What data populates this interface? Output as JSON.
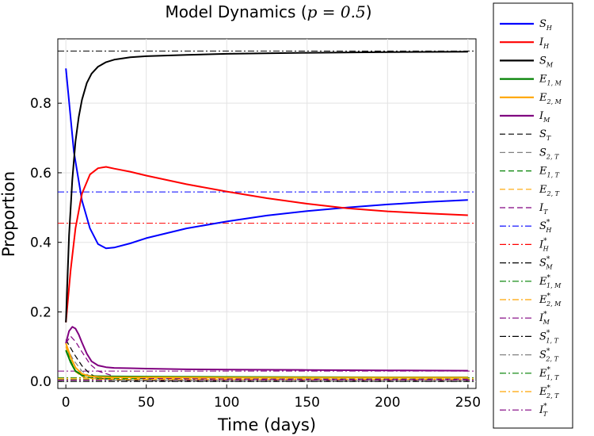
{
  "chart_data": {
    "type": "line",
    "title": "Model Dynamics (p = 0.5)",
    "title_parts": {
      "text": "Model Dynamics (",
      "math": "p = 0.5",
      "close": ")"
    },
    "xlabel": "Time (days)",
    "ylabel": "Proportion",
    "xlim": [
      -5,
      255
    ],
    "ylim": [
      -0.02,
      0.985
    ],
    "xticks": [
      0,
      50,
      100,
      150,
      200,
      250
    ],
    "yticks": [
      0.0,
      0.2,
      0.4,
      0.6,
      0.8
    ],
    "xtick_labels": [
      "0",
      "50",
      "100",
      "150",
      "200",
      "250"
    ],
    "ytick_labels": [
      "0.0",
      "0.2",
      "0.4",
      "0.6",
      "0.8"
    ],
    "grid": true,
    "legend_position": "outside-right",
    "series": [
      {
        "name": "S_H",
        "base": "S",
        "sub": "H",
        "sup": "",
        "color": "#0000ff",
        "style": "solid",
        "width": 2,
        "x": [
          0,
          5,
          10,
          15,
          20,
          25,
          30,
          40,
          50,
          75,
          100,
          125,
          150,
          175,
          200,
          225,
          250
        ],
        "y": [
          0.9,
          0.66,
          0.52,
          0.44,
          0.395,
          0.383,
          0.385,
          0.397,
          0.412,
          0.44,
          0.46,
          0.477,
          0.49,
          0.5,
          0.509,
          0.516,
          0.522
        ]
      },
      {
        "name": "I_H",
        "base": "I",
        "sub": "H",
        "sup": "",
        "color": "#ff0000",
        "style": "solid",
        "width": 2,
        "x": [
          0,
          3,
          6,
          10,
          15,
          20,
          25,
          30,
          40,
          50,
          75,
          100,
          125,
          150,
          175,
          200,
          225,
          250
        ],
        "y": [
          0.17,
          0.32,
          0.44,
          0.54,
          0.595,
          0.613,
          0.617,
          0.612,
          0.603,
          0.592,
          0.567,
          0.546,
          0.527,
          0.511,
          0.498,
          0.489,
          0.483,
          0.478
        ]
      },
      {
        "name": "S_M",
        "base": "S",
        "sub": "M",
        "sup": "",
        "color": "#000000",
        "style": "solid",
        "width": 2,
        "x": [
          0,
          2,
          4,
          6,
          8,
          10,
          13,
          16,
          20,
          25,
          30,
          40,
          50,
          75,
          100,
          150,
          200,
          250
        ],
        "y": [
          0.17,
          0.42,
          0.58,
          0.69,
          0.76,
          0.81,
          0.858,
          0.885,
          0.905,
          0.918,
          0.925,
          0.932,
          0.935,
          0.939,
          0.942,
          0.945,
          0.947,
          0.948
        ]
      },
      {
        "name": "E_1,M",
        "base": "E",
        "sub": "1, M",
        "sup": "",
        "color": "#008000",
        "style": "solid",
        "width": 2,
        "x": [
          0,
          3,
          6,
          10,
          15,
          20,
          30,
          50,
          100,
          150,
          200,
          250
        ],
        "y": [
          0.09,
          0.055,
          0.03,
          0.019,
          0.016,
          0.015,
          0.0145,
          0.014,
          0.013,
          0.0125,
          0.012,
          0.012
        ]
      },
      {
        "name": "E_2,M",
        "base": "E",
        "sub": "2, M",
        "sup": "",
        "color": "#ffa500",
        "style": "solid",
        "width": 2,
        "x": [
          0,
          3,
          6,
          10,
          15,
          20,
          30,
          50,
          100,
          150,
          200,
          250
        ],
        "y": [
          0.11,
          0.07,
          0.04,
          0.022,
          0.015,
          0.013,
          0.012,
          0.012,
          0.011,
          0.011,
          0.011,
          0.011
        ]
      },
      {
        "name": "I_M",
        "base": "I",
        "sub": "M",
        "sup": "",
        "color": "#800080",
        "style": "solid",
        "width": 2,
        "x": [
          0,
          2,
          4,
          6,
          8,
          10,
          13,
          16,
          20,
          25,
          30,
          40,
          50,
          75,
          100,
          150,
          200,
          250
        ],
        "y": [
          0.11,
          0.145,
          0.157,
          0.152,
          0.135,
          0.112,
          0.08,
          0.058,
          0.046,
          0.041,
          0.039,
          0.038,
          0.037,
          0.035,
          0.034,
          0.033,
          0.032,
          0.031
        ]
      },
      {
        "name": "S_T",
        "base": "S",
        "sub": "T",
        "sup": "",
        "color": "#000000",
        "style": "dashed",
        "width": 1.2,
        "x": [
          0,
          5,
          10,
          15,
          20,
          30,
          50,
          100,
          150,
          200,
          250
        ],
        "y": [
          0.12,
          0.08,
          0.045,
          0.022,
          0.01,
          0.004,
          0.002,
          0.001,
          0.001,
          0.001,
          0.001
        ]
      },
      {
        "name": "S_2,T",
        "base": "S",
        "sub": "2, T",
        "sup": "",
        "color": "#808080",
        "style": "dashed",
        "width": 1.2,
        "x": [
          0,
          5,
          10,
          15,
          20,
          30,
          50,
          100,
          150,
          200,
          250
        ],
        "y": [
          0.1,
          0.06,
          0.03,
          0.015,
          0.008,
          0.004,
          0.003,
          0.002,
          0.002,
          0.002,
          0.002
        ]
      },
      {
        "name": "E_1,T",
        "base": "E",
        "sub": "1, T",
        "sup": "",
        "color": "#008000",
        "style": "dashed",
        "width": 1.2,
        "x": [
          0,
          3,
          6,
          10,
          15,
          20,
          30,
          50,
          100,
          150,
          200,
          250
        ],
        "y": [
          0.11,
          0.06,
          0.03,
          0.016,
          0.011,
          0.009,
          0.008,
          0.008,
          0.007,
          0.007,
          0.007,
          0.007
        ]
      },
      {
        "name": "E_2,T",
        "base": "E",
        "sub": "2, T",
        "sup": "",
        "color": "#ffa500",
        "style": "dashed",
        "width": 1.2,
        "x": [
          0,
          3,
          6,
          10,
          15,
          20,
          30,
          50,
          100,
          150,
          200,
          250
        ],
        "y": [
          0.1,
          0.055,
          0.028,
          0.014,
          0.009,
          0.007,
          0.006,
          0.006,
          0.006,
          0.006,
          0.006,
          0.006
        ]
      },
      {
        "name": "I_T",
        "base": "I",
        "sub": "T",
        "sup": "",
        "color": "#800080",
        "style": "dashed",
        "width": 1.2,
        "x": [
          0,
          3,
          6,
          10,
          15,
          20,
          30,
          50,
          100,
          150,
          200,
          250
        ],
        "y": [
          0.11,
          0.13,
          0.115,
          0.085,
          0.05,
          0.03,
          0.015,
          0.009,
          0.007,
          0.006,
          0.006,
          0.006
        ]
      },
      {
        "name": "S_H*",
        "base": "S",
        "sub": "H",
        "sup": "*",
        "color": "#0000ff",
        "style": "dashdot",
        "width": 1,
        "x": [
          -5,
          255
        ],
        "y": [
          0.545,
          0.545
        ]
      },
      {
        "name": "I_H*",
        "base": "I",
        "sub": "H",
        "sup": "*",
        "color": "#ff0000",
        "style": "dashdot",
        "width": 1,
        "x": [
          -5,
          255
        ],
        "y": [
          0.455,
          0.455
        ]
      },
      {
        "name": "S_M*",
        "base": "S",
        "sub": "M",
        "sup": "*",
        "color": "#000000",
        "style": "dashdot",
        "width": 1,
        "x": [
          -5,
          255
        ],
        "y": [
          0.95,
          0.95
        ]
      },
      {
        "name": "E_1,M*",
        "base": "E",
        "sub": "1, M",
        "sup": "*",
        "color": "#008000",
        "style": "dashdot",
        "width": 1,
        "x": [
          -5,
          255
        ],
        "y": [
          0.011,
          0.011
        ]
      },
      {
        "name": "E_2,M*",
        "base": "E",
        "sub": "2, M",
        "sup": "*",
        "color": "#ffa500",
        "style": "dashdot",
        "width": 1,
        "x": [
          -5,
          255
        ],
        "y": [
          0.009,
          0.009
        ]
      },
      {
        "name": "I_M*",
        "base": "I",
        "sub": "M",
        "sup": "*",
        "color": "#800080",
        "style": "dashdot",
        "width": 1,
        "x": [
          -5,
          255
        ],
        "y": [
          0.03,
          0.03
        ]
      },
      {
        "name": "S_1,T*",
        "base": "S",
        "sub": "1, T",
        "sup": "*",
        "color": "#000000",
        "style": "dashdot",
        "width": 1,
        "x": [
          -5,
          255
        ],
        "y": [
          0.0,
          0.0
        ]
      },
      {
        "name": "S_2,T*",
        "base": "S",
        "sub": "2, T",
        "sup": "*",
        "color": "#808080",
        "style": "dashdot",
        "width": 1,
        "x": [
          -5,
          255
        ],
        "y": [
          0.002,
          0.002
        ]
      },
      {
        "name": "E_1,T*",
        "base": "E",
        "sub": "1, T",
        "sup": "*",
        "color": "#008000",
        "style": "dashdot",
        "width": 1,
        "x": [
          -5,
          255
        ],
        "y": [
          0.006,
          0.006
        ]
      },
      {
        "name": "E_2,T*",
        "base": "E",
        "sub": "2, T",
        "sup": "*",
        "color": "#ffa500",
        "style": "dashdot",
        "width": 1,
        "x": [
          -5,
          255
        ],
        "y": [
          0.005,
          0.005
        ]
      },
      {
        "name": "I_T*",
        "base": "I",
        "sub": "T",
        "sup": "*",
        "color": "#800080",
        "style": "dashdot",
        "width": 1,
        "x": [
          -5,
          255
        ],
        "y": [
          0.004,
          0.004
        ]
      }
    ]
  }
}
